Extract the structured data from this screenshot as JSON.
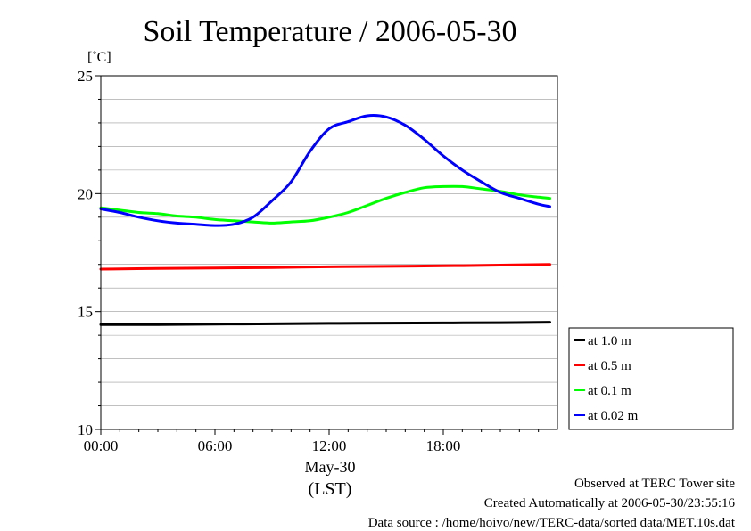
{
  "chart_data": {
    "type": "line",
    "title": "Soil Temperature / 2006-05-30",
    "ylabel": "[˚C]",
    "xlabel_date": "May-30",
    "xlabel_tz": "(LST)",
    "xlim": [
      0,
      24
    ],
    "ylim": [
      10,
      25
    ],
    "x_ticks": [
      0,
      6,
      12,
      18
    ],
    "x_tick_labels": [
      "00:00",
      "06:00",
      "12:00",
      "18:00"
    ],
    "y_ticks": [
      10,
      15,
      20,
      25
    ],
    "y_tick_labels": [
      "10",
      "15",
      "20",
      "25"
    ],
    "grid": true,
    "legend_position": "bottom-right",
    "series": [
      {
        "name": "at 1.0 m",
        "color": "#000000",
        "x": [
          0,
          3,
          6,
          9,
          12,
          15,
          18,
          21,
          23.6
        ],
        "y": [
          14.45,
          14.45,
          14.47,
          14.48,
          14.5,
          14.51,
          14.52,
          14.53,
          14.55
        ]
      },
      {
        "name": "at 0.5 m",
        "color": "#ff0000",
        "x": [
          0,
          3,
          6,
          9,
          12,
          15,
          18,
          21,
          23.6
        ],
        "y": [
          16.8,
          16.83,
          16.85,
          16.87,
          16.9,
          16.92,
          16.94,
          16.97,
          17.0
        ]
      },
      {
        "name": "at 0.1 m",
        "color": "#00ff00",
        "x": [
          0,
          1,
          2,
          3,
          4,
          5,
          6,
          7,
          8,
          9,
          10,
          11,
          12,
          13,
          14,
          15,
          16,
          17,
          18,
          19,
          20,
          21,
          22,
          23,
          23.6
        ],
        "y": [
          19.4,
          19.3,
          19.2,
          19.15,
          19.05,
          19.0,
          18.9,
          18.85,
          18.8,
          18.75,
          18.8,
          18.85,
          19.0,
          19.2,
          19.5,
          19.8,
          20.05,
          20.25,
          20.3,
          20.3,
          20.2,
          20.1,
          19.95,
          19.85,
          19.8
        ]
      },
      {
        "name": "at 0.02 m",
        "color": "#0000ff",
        "x": [
          0,
          1,
          2,
          3,
          4,
          5,
          6,
          7,
          8,
          9,
          10,
          11,
          12,
          13,
          14,
          15,
          16,
          17,
          18,
          19,
          20,
          21,
          22,
          23,
          23.6
        ],
        "y": [
          19.35,
          19.2,
          19.0,
          18.85,
          18.75,
          18.7,
          18.65,
          18.7,
          19.0,
          19.7,
          20.5,
          21.8,
          22.75,
          23.05,
          23.3,
          23.25,
          22.9,
          22.3,
          21.6,
          21.0,
          20.5,
          20.05,
          19.8,
          19.55,
          19.45
        ]
      }
    ]
  },
  "footer": {
    "line1": "Observed at TERC Tower site",
    "line2": "Created Automatically at 2006-05-30/23:55:16",
    "line3": "Data source : /home/hoivo/new/TERC-data/sorted  data/MET.10s.dat"
  }
}
